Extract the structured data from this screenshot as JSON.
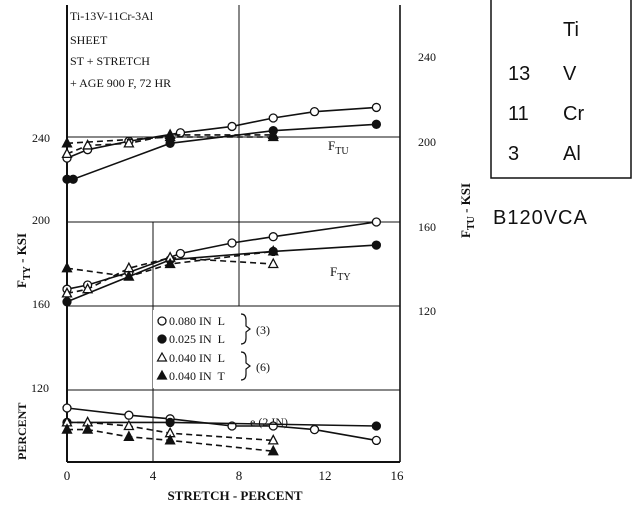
{
  "annotation": {
    "lines": [
      "Ti-13V-11Cr-3Al",
      "SHEET",
      "ST + STRETCH",
      "+ AGE 900 F, 72 HR"
    ]
  },
  "composition_box": {
    "header": "Ti",
    "rows": [
      {
        "amount": "13",
        "element": "V"
      },
      {
        "amount": "11",
        "element": "Cr"
      },
      {
        "amount": "3",
        "element": "Al"
      }
    ]
  },
  "alloy_code": "B120VCA",
  "legend": {
    "items": [
      {
        "label": "0.080 IN  L",
        "marker": "open-circle",
        "line": "solid"
      },
      {
        "label": "0.025 IN  L",
        "marker": "filled-circle",
        "line": "solid"
      },
      {
        "label": "0.040 IN  L",
        "marker": "open-triangle",
        "line": "dashed"
      },
      {
        "label": "0.040 IN  T",
        "marker": "filled-triangle",
        "line": "dashed"
      }
    ],
    "group_refs": [
      "(3)",
      "(6)"
    ]
  },
  "chart_data": {
    "type": "line",
    "xlabel": "STRETCH - PERCENT",
    "xlim": [
      0,
      16
    ],
    "xticks": [
      "0",
      "4",
      "8",
      "12",
      "16"
    ],
    "left_axis": {
      "labels": [
        "F",
        "TY",
        " - KSI"
      ],
      "ticks": [
        "120",
        "160",
        "200",
        "240"
      ]
    },
    "right_axis": {
      "labels": [
        "F",
        "TU",
        " - KSI"
      ],
      "ticks": [
        "120",
        "160",
        "200",
        "240"
      ]
    },
    "percent_axis": {
      "label": "PERCENT"
    },
    "curve_labels": {
      "ftu": [
        "F",
        "TU"
      ],
      "fty": [
        "F",
        "TY"
      ],
      "elong": "e (2 IN)"
    },
    "panels": [
      {
        "name": "FTU",
        "units": "ksi",
        "series": [
          {
            "name": "0.080 IN L",
            "x": [
              0,
              1,
              3,
              5.5,
              8,
              10,
              12,
              15
            ],
            "y": [
              190,
              194,
              198,
              202,
              205,
              209,
              212,
              214
            ]
          },
          {
            "name": "0.025 IN L",
            "x": [
              0,
              0.3,
              5,
              10,
              15
            ],
            "y": [
              180,
              180,
              197,
              203,
              206
            ]
          },
          {
            "name": "0.040 IN L",
            "x": [
              0,
              1,
              3,
              5,
              10
            ],
            "y": [
              192,
              196,
              197,
              201,
              201
            ]
          },
          {
            "name": "0.040 IN T",
            "x": [
              0,
              5,
              10
            ],
            "y": [
              197,
              200,
              200
            ]
          }
        ]
      },
      {
        "name": "FTY",
        "units": "ksi",
        "series": [
          {
            "name": "0.080 IN L",
            "x": [
              0,
              1,
              3,
              5.5,
              8,
              10,
              15
            ],
            "y": [
              168,
              170,
              176,
              185,
              190,
              193,
              200
            ]
          },
          {
            "name": "0.025 IN L",
            "x": [
              0,
              5,
              10,
              15
            ],
            "y": [
              162,
              182,
              186,
              189
            ]
          },
          {
            "name": "0.040 IN L",
            "x": [
              0,
              1,
              3,
              5,
              10
            ],
            "y": [
              166,
              168,
              178,
              183,
              180
            ]
          },
          {
            "name": "0.040 IN T",
            "x": [
              0,
              3,
              5,
              10
            ],
            "y": [
              178,
              174,
              180,
              186
            ]
          }
        ]
      },
      {
        "name": "Elongation",
        "units": "percent",
        "series": [
          {
            "name": "0.080 IN L",
            "x": [
              0,
              3,
              5,
              8,
              10,
              12,
              15
            ],
            "y": [
              15,
              13,
              12,
              10,
              10,
              9,
              6
            ]
          },
          {
            "name": "0.025 IN L",
            "x": [
              0,
              5,
              15
            ],
            "y": [
              11,
              11,
              10
            ]
          },
          {
            "name": "0.040 IN L",
            "x": [
              0,
              1,
              3,
              5,
              10
            ],
            "y": [
              11,
              11,
              10,
              8,
              6
            ]
          },
          {
            "name": "0.040 IN T",
            "x": [
              0,
              1,
              3,
              5,
              10
            ],
            "y": [
              9,
              9,
              7,
              6,
              3
            ]
          }
        ]
      }
    ]
  }
}
